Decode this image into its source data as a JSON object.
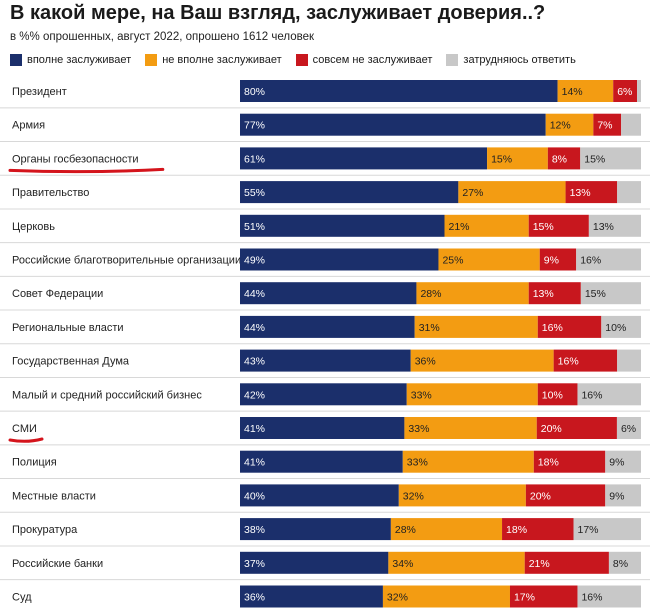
{
  "title": "В какой мере, на Ваш взгляд, заслуживает доверия..?",
  "subtitle": "в %% опрошенных, август 2022, опрошено 1612 человек",
  "colors": {
    "fully": "#1b2f6b",
    "not_fully": "#f39c12",
    "not_at_all": "#c8171e",
    "hard_to_say": "#c8c8c8"
  },
  "highlighted_rows": [
    "Органы госбезопасности",
    "СМИ"
  ],
  "chart_data": {
    "type": "bar",
    "orientation": "horizontal",
    "stacked": true,
    "normalized_to_percent": true,
    "categories": [
      "Президент",
      "Армия",
      "Органы госбезопасности",
      "Правительство",
      "Церковь",
      "Российские благотворительные организации",
      "Совет Федерации",
      "Региональные власти",
      "Государственная Дума",
      "Малый и средний российский бизнес",
      "СМИ",
      "Полиция",
      "Местные власти",
      "Прокуратура",
      "Российские банки",
      "Суд"
    ],
    "series": [
      {
        "name": "вполне заслуживает",
        "color": "#1b2f6b",
        "values": [
          80,
          77,
          61,
          55,
          51,
          49,
          44,
          44,
          43,
          42,
          41,
          41,
          40,
          38,
          37,
          36
        ],
        "labels": [
          "80%",
          "77%",
          "61%",
          "55%",
          "51%",
          "49%",
          "44%",
          "44%",
          "43%",
          "42%",
          "41%",
          "41%",
          "40%",
          "38%",
          "37%",
          "36%"
        ]
      },
      {
        "name": "не вполне заслуживает",
        "color": "#f39c12",
        "values": [
          14,
          12,
          15,
          27,
          21,
          25,
          28,
          31,
          36,
          33,
          33,
          33,
          32,
          28,
          34,
          32
        ],
        "labels": [
          "14%",
          "12%",
          "15%",
          "27%",
          "21%",
          "25%",
          "28%",
          "31%",
          "36%",
          "33%",
          "33%",
          "33%",
          "32%",
          "28%",
          "34%",
          "32%"
        ]
      },
      {
        "name": "совсем не заслуживает",
        "color": "#c8171e",
        "values": [
          6,
          7,
          8,
          13,
          15,
          9,
          13,
          16,
          16,
          10,
          20,
          18,
          20,
          18,
          21,
          17
        ],
        "labels": [
          "6%",
          "7%",
          "8%",
          "13%",
          "15%",
          "9%",
          "13%",
          "16%",
          "16%",
          "10%",
          "20%",
          "18%",
          "20%",
          "18%",
          "21%",
          "17%"
        ]
      },
      {
        "name": "затрудняюсь ответить",
        "color": "#c8c8c8",
        "values": [
          1,
          5,
          15,
          6,
          13,
          16,
          15,
          10,
          6,
          16,
          6,
          9,
          9,
          17,
          8,
          16
        ],
        "labels": [
          "",
          "",
          "15%",
          "",
          "13%",
          "16%",
          "15%",
          "10%",
          "",
          "16%",
          "6%",
          "9%",
          "9%",
          "17%",
          "8%",
          "16%"
        ]
      }
    ]
  }
}
